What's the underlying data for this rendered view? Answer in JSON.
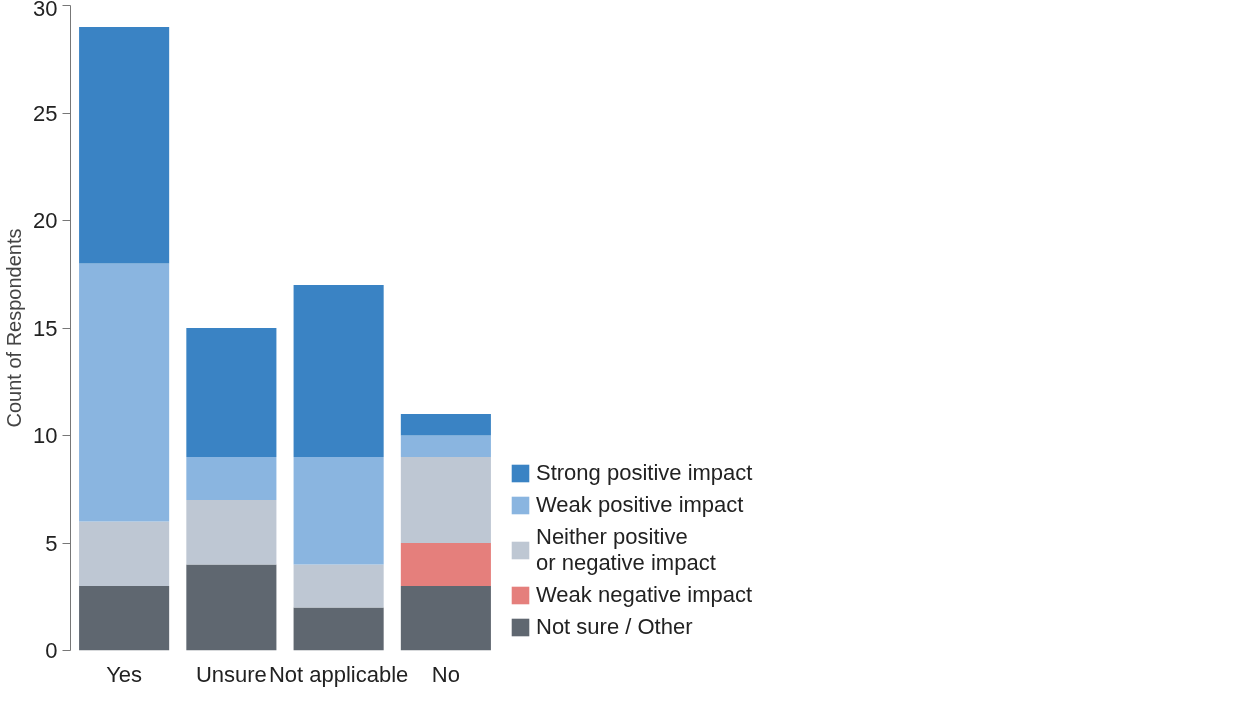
{
  "chart_data": {
    "type": "bar",
    "stacked": true,
    "ylabel": "Count of Respondents",
    "categories": [
      "Yes",
      "Unsure",
      "Not applicable",
      "No"
    ],
    "series": [
      {
        "name": "Not sure / Other",
        "color": "#5f6770",
        "values": [
          3,
          4,
          2,
          3
        ]
      },
      {
        "name": "Weak negative impact",
        "color": "#e57f7c",
        "values": [
          0,
          0,
          0,
          2
        ]
      },
      {
        "name": "Neither positive\nor negative impact",
        "color": "#bec7d3",
        "values": [
          3,
          3,
          2,
          4
        ]
      },
      {
        "name": "Weak positive impact",
        "color": "#8ab5e0",
        "values": [
          12,
          2,
          5,
          1
        ]
      },
      {
        "name": "Strong positive impact",
        "color": "#3a83c4",
        "values": [
          11,
          6,
          8,
          1
        ]
      }
    ],
    "ylim": [
      0,
      30
    ],
    "yticks": [
      0,
      5,
      10,
      15,
      20,
      25,
      30
    ],
    "grid": false,
    "legend": "right"
  }
}
